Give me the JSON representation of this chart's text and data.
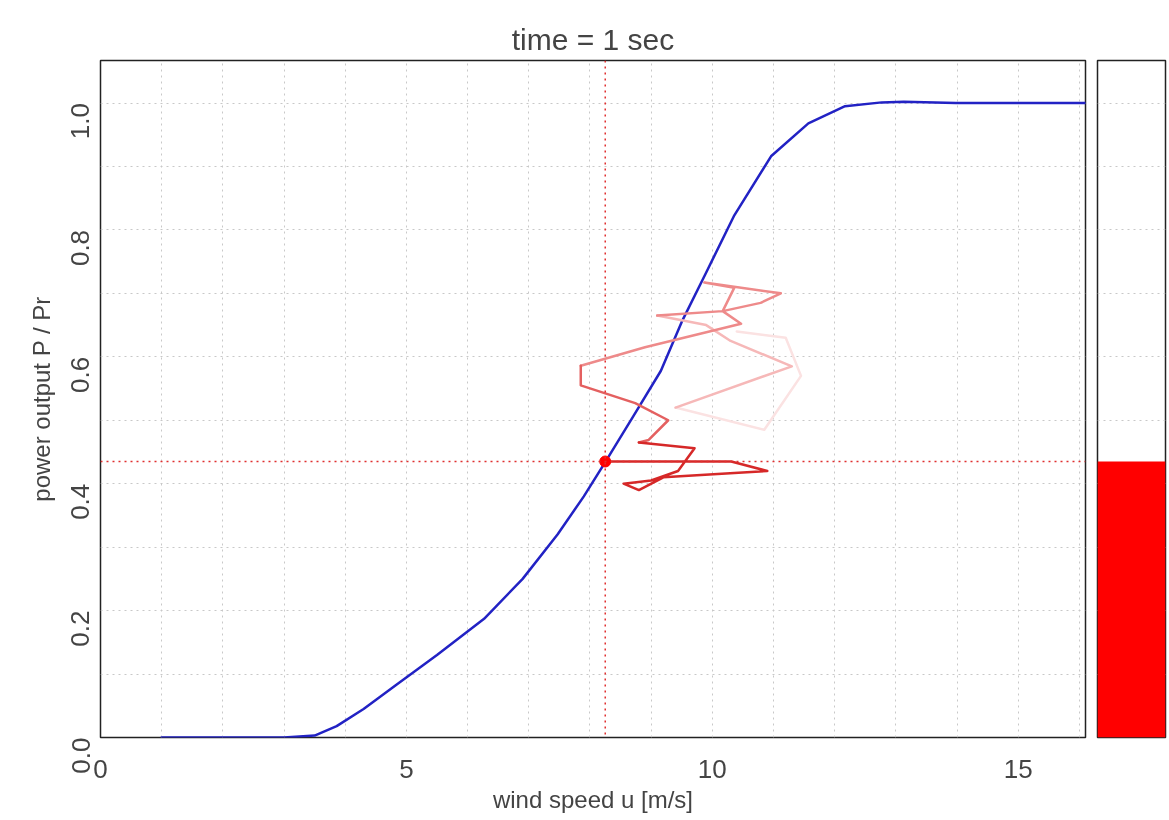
{
  "chart_data": [
    {
      "type": "line",
      "title": "time = 1 sec",
      "xlabel": "wind speed u [m/s]",
      "ylabel": "power output P / Pr",
      "xlim": [
        0,
        16.1
      ],
      "ylim": [
        0,
        1.067
      ],
      "xticks": [
        0,
        {
          "value": 1,
          "label": null
        },
        {
          "value": 2,
          "label": null
        },
        {
          "value": 3,
          "label": null
        },
        {
          "value": 4,
          "label": null
        },
        5,
        {
          "value": 6,
          "label": null
        },
        {
          "value": 7,
          "label": null
        },
        {
          "value": 8,
          "label": null
        },
        {
          "value": 9,
          "label": null
        },
        10,
        {
          "value": 11,
          "label": null
        },
        {
          "value": 12,
          "label": null
        },
        {
          "value": 13,
          "label": null
        },
        {
          "value": 14,
          "label": null
        },
        15,
        {
          "value": 16,
          "label": null
        }
      ],
      "yticks": [
        {
          "value": 0,
          "label": "0.0"
        },
        {
          "value": 0.1,
          "label": null
        },
        {
          "value": 0.2,
          "label": "0.2"
        },
        {
          "value": 0.3,
          "label": null
        },
        {
          "value": 0.4,
          "label": "0.4"
        },
        {
          "value": 0.5,
          "label": null
        },
        {
          "value": 0.6,
          "label": "0.6"
        },
        {
          "value": 0.7,
          "label": null
        },
        {
          "value": 0.8,
          "label": "0.8"
        },
        {
          "value": 0.9,
          "label": null
        },
        {
          "value": 1.0,
          "label": "1.0"
        }
      ],
      "grid": true,
      "line_style": "solid",
      "marker": "none",
      "series": [
        {
          "color": "#2222c4",
          "x": [
            1,
            2,
            3,
            3.5,
            3.86,
            4.3,
            4.82,
            5.5,
            6.27,
            6.9,
            7.47,
            7.9,
            8.25,
            8.7,
            9.16,
            9.5,
            9.88,
            10.36,
            10.96,
            11.57,
            12.17,
            12.77,
            13.13,
            13.98,
            15,
            16.1
          ],
          "values": [
            0,
            0,
            0,
            0.003,
            0.018,
            0.045,
            0.082,
            0.13,
            0.187,
            0.25,
            0.32,
            0.38,
            0.434,
            0.505,
            0.578,
            0.655,
            0.729,
            0.823,
            0.916,
            0.968,
            0.995,
            1.001,
            1.002,
            1.0,
            1.0,
            1.0
          ]
        },
        {
          "color": "#fbe2e2",
          "x": [
            10.4,
            11.2,
            11.45,
            10.85,
            9.4
          ],
          "values": [
            0.64,
            0.63,
            0.57,
            0.485,
            0.52
          ]
        },
        {
          "color": "#f6b8b8",
          "x": [
            9.4,
            11.3,
            10.3,
            9.9,
            9.1
          ],
          "values": [
            0.52,
            0.585,
            0.625,
            0.65,
            0.665
          ]
        },
        {
          "color": "#ee8a8a",
          "x": [
            9.1,
            10.17,
            10.36,
            9.87,
            11.12,
            10.79,
            10.17,
            10.47,
            8.9,
            7.85
          ],
          "values": [
            0.665,
            0.672,
            0.709,
            0.717,
            0.7,
            0.685,
            0.672,
            0.652,
            0.615,
            0.586
          ]
        },
        {
          "color": "#e46060",
          "x": [
            7.85,
            7.85,
            8.74,
            9.28,
            8.96,
            8.8
          ],
          "values": [
            0.586,
            0.555,
            0.527,
            0.5,
            0.469,
            0.465
          ]
        },
        {
          "color": "#d62828",
          "x": [
            8.8,
            9.71,
            9.44,
            9.0,
            8.55,
            8.8,
            9.2,
            10.36,
            10.9,
            10.31,
            8.25
          ],
          "values": [
            0.465,
            0.456,
            0.42,
            0.405,
            0.4,
            0.39,
            0.41,
            0.417,
            0.42,
            0.435,
            0.435
          ]
        },
        {
          "type": "scatter",
          "marker": "circle",
          "color": "#ff0000",
          "x": [
            8.25
          ],
          "values": [
            0.435
          ]
        }
      ],
      "ref_lines": [
        {
          "axis": "x",
          "value": 8.25,
          "color": "#e03030",
          "line_style": "dotted"
        },
        {
          "axis": "y",
          "value": 0.435,
          "color": "#e03030",
          "line_style": "dotted"
        }
      ]
    },
    {
      "type": "bar",
      "categories": [
        null
      ],
      "values": [
        0.435
      ],
      "colors": [
        "#ff0000"
      ],
      "ylim": [
        0,
        1.067
      ],
      "yticks": [
        0,
        0.1,
        0.2,
        0.3,
        0.4,
        0.5,
        0.6,
        0.7,
        0.8,
        0.9,
        1.0
      ],
      "tick_labels": false,
      "grid": "y"
    }
  ]
}
